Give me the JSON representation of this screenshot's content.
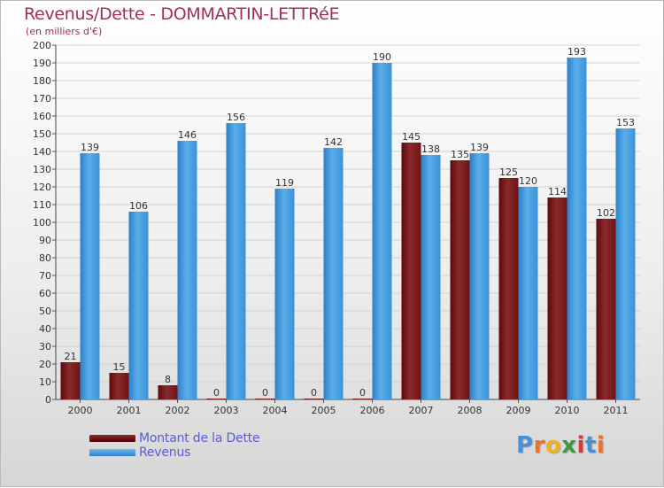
{
  "header": {
    "title": "Revenus/Dette - DOMMARTIN-LETTRéE",
    "subtitle": "(en milliers d'€)"
  },
  "legend": {
    "items": [
      {
        "label": "Montant de la Dette",
        "color": "#6b0f12"
      },
      {
        "label": "Revenus",
        "color": "#3a92d8"
      }
    ]
  },
  "logo": {
    "text": "Proxiti",
    "letters": [
      "P",
      "r",
      "o",
      "x",
      "i",
      "t",
      "i"
    ],
    "colors": [
      "#4a90d9",
      "#e8732a",
      "#f1b21b",
      "#3d9a3d",
      "#d43a3a",
      "#4a90d9",
      "#e8732a"
    ]
  },
  "chart_data": {
    "type": "bar",
    "categories": [
      "2000",
      "2001",
      "2002",
      "2003",
      "2004",
      "2005",
      "2006",
      "2007",
      "2008",
      "2009",
      "2010",
      "2011"
    ],
    "series": [
      {
        "name": "Montant de la Dette",
        "color": "#7b1a1c",
        "values": [
          21,
          15,
          8,
          0,
          0,
          0,
          0,
          145,
          135,
          125,
          114,
          102
        ]
      },
      {
        "name": "Revenus",
        "color": "#3a92d8",
        "values": [
          139,
          106,
          146,
          156,
          119,
          142,
          190,
          138,
          139,
          120,
          193,
          153
        ]
      }
    ],
    "ylim": [
      0,
      200
    ],
    "yticks": [
      "0",
      "10",
      "20",
      "30",
      "40",
      "50",
      "60",
      "70",
      "80",
      "90",
      "100",
      "110",
      "120",
      "130",
      "140",
      "150",
      "160",
      "170",
      "180",
      "190",
      "200"
    ],
    "grid": true
  }
}
